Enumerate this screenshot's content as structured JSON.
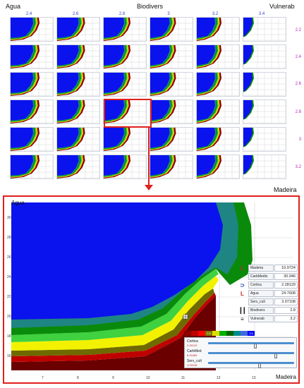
{
  "header": {
    "left_label": "Agua",
    "center_label": "Biodivers",
    "right_label": "Vulnerab",
    "bottom_label": "Madeira"
  },
  "columns": [
    "2.4",
    "2.6",
    "2.8",
    "3",
    "3.2",
    "3.4"
  ],
  "rows": [
    "2.2",
    "2.4",
    "2.6",
    "2.8",
    "3",
    "3.2"
  ],
  "selected": {
    "column": "2.8",
    "row": "2.8"
  },
  "zoom": {
    "y_label": "Agua",
    "x_label": "Madeira",
    "y_ticks": [
      "30",
      "28",
      "26",
      "24",
      "22",
      "20",
      "18",
      "16"
    ],
    "x_ticks": [
      "7",
      "8",
      "9",
      "10",
      "11",
      "12",
      "13"
    ]
  },
  "legend": [
    {
      "icon": "carbon-icon",
      "name": "Madeira",
      "value": "10.9724",
      "color": "#c0272d"
    },
    {
      "icon": "blank-icon",
      "name": "CarbMedio",
      "value": "30.946",
      "color": "#1f3fb0"
    },
    {
      "icon": "cork-icon",
      "name": "Cortica",
      "value": "2.28129",
      "color": "#1f3fb0"
    },
    {
      "icon": "water-icon",
      "name": "Agua",
      "value": "24.7608",
      "color": "#c0272d"
    },
    {
      "icon": "blank-icon",
      "name": "Serv_cult",
      "value": "3.07108",
      "color": "#1f3fb0"
    },
    {
      "icon": "bars-icon",
      "name": "Biodivers",
      "value": "2.8",
      "color": "#111111"
    },
    {
      "icon": "lines-icon",
      "name": "Vulnerab",
      "value": "3.2",
      "color": "#111111"
    }
  ],
  "scale": [
    {
      "label": "",
      "color": "#8b0000"
    },
    {
      "label": "",
      "color": "#c00000"
    },
    {
      "label": "",
      "color": "#ff0000"
    },
    {
      "label": "1.5",
      "color": "#7a7a00"
    },
    {
      "label": "",
      "color": "#dede00"
    },
    {
      "label": "",
      "color": "#00b000"
    },
    {
      "label": "",
      "color": "#006400"
    },
    {
      "label": "",
      "color": "#008b8b"
    },
    {
      "label": "",
      "color": "#4169e1"
    },
    {
      "label": "3.5",
      "color": "#0000ff"
    }
  ],
  "sliders": [
    {
      "name": "Cortica",
      "value": "2.28129",
      "level": 0.55
    },
    {
      "name": "CarbMed",
      "value": "8.41684",
      "level": 0.8
    },
    {
      "name": "Serv_cult",
      "value": "3.09238",
      "level": 0.6
    }
  ],
  "palette": {
    "blue": "#0a12ee",
    "teal": "#1f8582",
    "green": "#0a8a0a",
    "lime": "#3fd13f",
    "yellow": "#f2f200",
    "olive": "#6f6a00",
    "red": "#c00000",
    "dark_red": "#6b0000"
  }
}
